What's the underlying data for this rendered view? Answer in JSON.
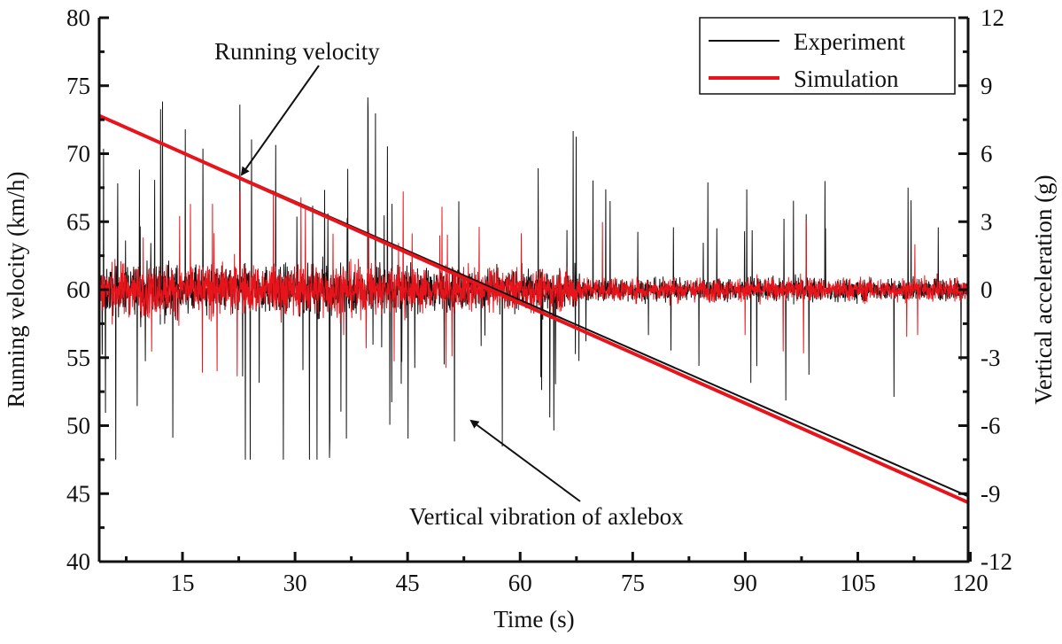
{
  "chart_data": {
    "type": "line",
    "xlabel": "Time (s)",
    "ylabel_left": "Running velocity (km/h)",
    "ylabel_right": "Vertical acceleration (g)",
    "xlim": [
      3.9,
      119.7
    ],
    "ylim_left": [
      40,
      80
    ],
    "ylim_right": [
      -12,
      12
    ],
    "x_ticks": [
      "15",
      "30",
      "45",
      "60",
      "75",
      "90",
      "105",
      "120"
    ],
    "x_tick_values": [
      15,
      30,
      45,
      60,
      75,
      90,
      105,
      120
    ],
    "y_left_ticks": [
      "40",
      "45",
      "50",
      "55",
      "60",
      "65",
      "70",
      "75",
      "80"
    ],
    "y_left_tick_values": [
      40,
      45,
      50,
      55,
      60,
      65,
      70,
      75,
      80
    ],
    "y_right_ticks": [
      "-12",
      "-9",
      "-6",
      "-3",
      "0",
      "3",
      "6",
      "9",
      "12"
    ],
    "y_right_tick_values": [
      -12,
      -9,
      -6,
      -3,
      0,
      3,
      6,
      9,
      12
    ],
    "grid": false,
    "legend": {
      "placement": "top-right",
      "entries": [
        "Experiment",
        "Simulation"
      ]
    },
    "colors": {
      "Experiment": "#111111",
      "Simulation": "#e8141b"
    },
    "series": [
      {
        "name": "Experiment",
        "quantity": "Running velocity",
        "axis": "left",
        "x": [
          3.9,
          119.7
        ],
        "y": [
          72.8,
          44.8
        ]
      },
      {
        "name": "Simulation",
        "quantity": "Running velocity",
        "axis": "left",
        "x": [
          3.9,
          119.7
        ],
        "y": [
          72.8,
          44.35
        ]
      },
      {
        "name": "Experiment",
        "quantity": "Vertical vibration of axlebox",
        "axis": "right",
        "peak_max": 9.5,
        "peak_min": -7.5
      },
      {
        "name": "Simulation",
        "quantity": "Vertical vibration of axlebox",
        "axis": "right",
        "peak_max": 4.0,
        "peak_min": -5.5
      }
    ],
    "annotations": [
      "Running velocity",
      "Vertical vibration of axlebox"
    ]
  }
}
